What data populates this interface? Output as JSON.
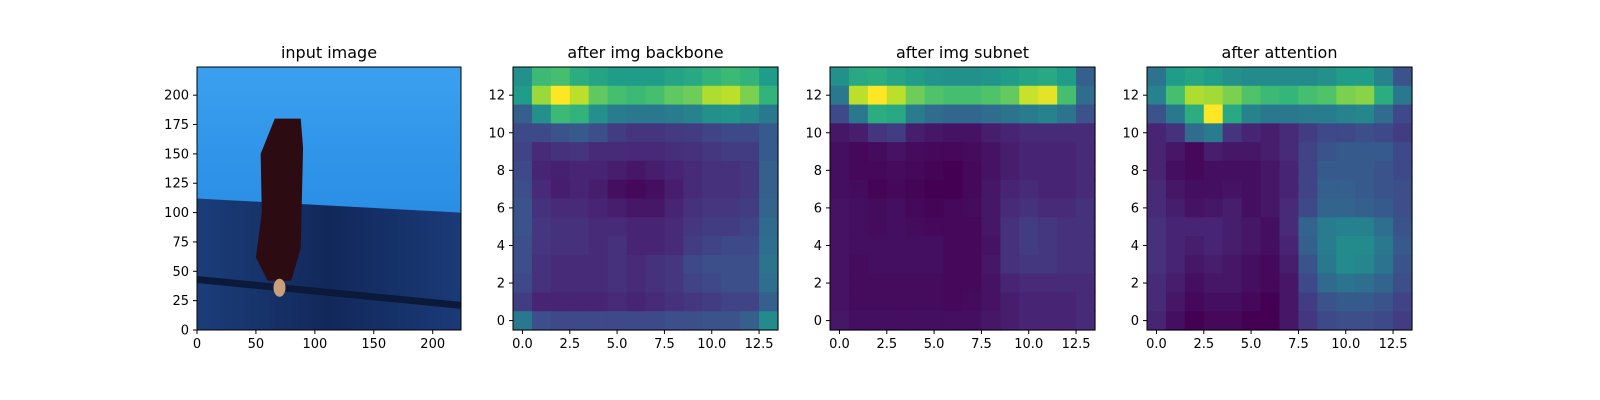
{
  "chart_data": [
    {
      "type": "image",
      "title": "input image",
      "xticks": [
        "0",
        "50",
        "100",
        "150",
        "200"
      ],
      "yticks": [
        "0",
        "25",
        "50",
        "75",
        "100",
        "125",
        "150",
        "175",
        "200"
      ],
      "xlim": [
        0,
        224
      ],
      "ylim": [
        224,
        0
      ],
      "image_description": "colors only",
      "colors": {
        "wall": "#12285a",
        "floor": "#2a8ee6",
        "dress": "#2c0c12"
      }
    },
    {
      "type": "heatmap",
      "title": "after img backbone",
      "colormap": "viridis",
      "xticks": [
        "0.0",
        "2.5",
        "5.0",
        "7.5",
        "10.0",
        "12.5"
      ],
      "yticks": [
        "0",
        "2",
        "4",
        "6",
        "8",
        "10",
        "12"
      ],
      "xlim": [
        -0.5,
        13.5
      ],
      "ylim": [
        13.5,
        -0.5
      ],
      "values": [
        [
          0.5,
          0.68,
          0.7,
          0.62,
          0.58,
          0.55,
          0.55,
          0.55,
          0.58,
          0.6,
          0.65,
          0.68,
          0.65,
          0.55
        ],
        [
          0.55,
          0.85,
          1.0,
          0.9,
          0.75,
          0.7,
          0.68,
          0.7,
          0.75,
          0.78,
          0.88,
          0.9,
          0.8,
          0.65
        ],
        [
          0.3,
          0.5,
          0.68,
          0.65,
          0.5,
          0.42,
          0.4,
          0.4,
          0.42,
          0.45,
          0.5,
          0.52,
          0.48,
          0.4
        ],
        [
          0.22,
          0.22,
          0.26,
          0.28,
          0.24,
          0.18,
          0.15,
          0.15,
          0.17,
          0.18,
          0.2,
          0.22,
          0.22,
          0.28
        ],
        [
          0.2,
          0.12,
          0.14,
          0.15,
          0.12,
          0.12,
          0.11,
          0.11,
          0.13,
          0.14,
          0.16,
          0.18,
          0.18,
          0.28
        ],
        [
          0.22,
          0.1,
          0.09,
          0.1,
          0.1,
          0.08,
          0.06,
          0.08,
          0.1,
          0.12,
          0.14,
          0.14,
          0.16,
          0.3
        ],
        [
          0.24,
          0.12,
          0.08,
          0.1,
          0.08,
          0.04,
          0.02,
          0.04,
          0.08,
          0.12,
          0.14,
          0.14,
          0.16,
          0.3
        ],
        [
          0.26,
          0.14,
          0.12,
          0.12,
          0.1,
          0.08,
          0.06,
          0.06,
          0.1,
          0.14,
          0.16,
          0.16,
          0.18,
          0.32
        ],
        [
          0.26,
          0.16,
          0.14,
          0.14,
          0.12,
          0.12,
          0.1,
          0.1,
          0.12,
          0.16,
          0.18,
          0.18,
          0.2,
          0.34
        ],
        [
          0.24,
          0.16,
          0.14,
          0.14,
          0.12,
          0.14,
          0.1,
          0.1,
          0.12,
          0.18,
          0.2,
          0.22,
          0.22,
          0.36
        ],
        [
          0.24,
          0.14,
          0.12,
          0.12,
          0.12,
          0.14,
          0.12,
          0.14,
          0.16,
          0.22,
          0.24,
          0.24,
          0.24,
          0.38
        ],
        [
          0.22,
          0.14,
          0.12,
          0.12,
          0.12,
          0.14,
          0.12,
          0.14,
          0.16,
          0.2,
          0.22,
          0.24,
          0.24,
          0.36
        ],
        [
          0.18,
          0.1,
          0.1,
          0.1,
          0.1,
          0.12,
          0.1,
          0.12,
          0.14,
          0.16,
          0.18,
          0.2,
          0.2,
          0.3
        ],
        [
          0.4,
          0.24,
          0.22,
          0.22,
          0.22,
          0.22,
          0.22,
          0.22,
          0.24,
          0.24,
          0.26,
          0.26,
          0.3,
          0.48
        ]
      ]
    },
    {
      "type": "heatmap",
      "title": "after img subnet",
      "colormap": "viridis",
      "xticks": [
        "0.0",
        "2.5",
        "5.0",
        "7.5",
        "10.0",
        "12.5"
      ],
      "yticks": [
        "0",
        "2",
        "4",
        "6",
        "8",
        "10",
        "12"
      ],
      "xlim": [
        -0.5,
        13.5
      ],
      "ylim": [
        13.5,
        -0.5
      ],
      "values": [
        [
          0.5,
          0.6,
          0.62,
          0.58,
          0.55,
          0.52,
          0.5,
          0.5,
          0.52,
          0.55,
          0.58,
          0.6,
          0.55,
          0.3
        ],
        [
          0.4,
          0.9,
          1.0,
          0.9,
          0.78,
          0.72,
          0.7,
          0.7,
          0.72,
          0.76,
          0.92,
          0.96,
          0.7,
          0.35
        ],
        [
          0.22,
          0.4,
          0.62,
          0.6,
          0.42,
          0.35,
          0.33,
          0.33,
          0.35,
          0.38,
          0.42,
          0.45,
          0.38,
          0.25
        ],
        [
          0.06,
          0.08,
          0.15,
          0.18,
          0.08,
          0.06,
          0.05,
          0.05,
          0.08,
          0.1,
          0.12,
          0.12,
          0.12,
          0.12
        ],
        [
          0.04,
          0.02,
          0.03,
          0.05,
          0.03,
          0.02,
          0.02,
          0.03,
          0.05,
          0.08,
          0.1,
          0.1,
          0.1,
          0.12
        ],
        [
          0.04,
          0.02,
          0.02,
          0.03,
          0.02,
          0.01,
          0.0,
          0.02,
          0.05,
          0.08,
          0.1,
          0.1,
          0.1,
          0.12
        ],
        [
          0.04,
          0.03,
          0.01,
          0.02,
          0.01,
          0.0,
          0.0,
          0.02,
          0.06,
          0.1,
          0.12,
          0.1,
          0.1,
          0.12
        ],
        [
          0.05,
          0.04,
          0.03,
          0.04,
          0.02,
          0.01,
          0.02,
          0.03,
          0.06,
          0.12,
          0.14,
          0.12,
          0.12,
          0.14
        ],
        [
          0.05,
          0.04,
          0.03,
          0.04,
          0.03,
          0.02,
          0.02,
          0.02,
          0.06,
          0.14,
          0.18,
          0.16,
          0.14,
          0.14
        ],
        [
          0.05,
          0.04,
          0.04,
          0.04,
          0.04,
          0.04,
          0.02,
          0.02,
          0.05,
          0.14,
          0.18,
          0.16,
          0.14,
          0.14
        ],
        [
          0.05,
          0.03,
          0.04,
          0.04,
          0.04,
          0.04,
          0.02,
          0.02,
          0.06,
          0.14,
          0.16,
          0.16,
          0.14,
          0.14
        ],
        [
          0.05,
          0.03,
          0.03,
          0.03,
          0.03,
          0.03,
          0.02,
          0.02,
          0.05,
          0.1,
          0.12,
          0.12,
          0.12,
          0.12
        ],
        [
          0.05,
          0.03,
          0.03,
          0.03,
          0.03,
          0.03,
          0.02,
          0.03,
          0.05,
          0.08,
          0.1,
          0.1,
          0.1,
          0.12
        ],
        [
          0.06,
          0.04,
          0.04,
          0.04,
          0.04,
          0.04,
          0.04,
          0.04,
          0.06,
          0.08,
          0.1,
          0.1,
          0.1,
          0.12
        ]
      ]
    },
    {
      "type": "heatmap",
      "title": "after attention",
      "colormap": "viridis",
      "xticks": [
        "0.0",
        "2.5",
        "5.0",
        "7.5",
        "10.0",
        "12.5"
      ],
      "yticks": [
        "0",
        "2",
        "4",
        "6",
        "8",
        "10",
        "12"
      ],
      "xlim": [
        -0.5,
        13.5
      ],
      "ylim": [
        13.5,
        -0.5
      ],
      "values": [
        [
          0.38,
          0.55,
          0.58,
          0.55,
          0.5,
          0.48,
          0.48,
          0.48,
          0.48,
          0.5,
          0.55,
          0.55,
          0.45,
          0.25
        ],
        [
          0.45,
          0.7,
          0.88,
          0.86,
          0.8,
          0.72,
          0.68,
          0.66,
          0.7,
          0.72,
          0.8,
          0.82,
          0.62,
          0.4
        ],
        [
          0.25,
          0.4,
          0.62,
          1.0,
          0.6,
          0.45,
          0.4,
          0.4,
          0.42,
          0.42,
          0.45,
          0.46,
          0.35,
          0.22
        ],
        [
          0.1,
          0.14,
          0.35,
          0.42,
          0.15,
          0.1,
          0.08,
          0.12,
          0.18,
          0.22,
          0.22,
          0.24,
          0.22,
          0.18
        ],
        [
          0.1,
          0.06,
          0.02,
          0.08,
          0.06,
          0.06,
          0.08,
          0.12,
          0.2,
          0.26,
          0.28,
          0.28,
          0.28,
          0.22
        ],
        [
          0.1,
          0.04,
          0.02,
          0.04,
          0.04,
          0.04,
          0.06,
          0.1,
          0.2,
          0.28,
          0.28,
          0.28,
          0.26,
          0.22
        ],
        [
          0.12,
          0.06,
          0.04,
          0.04,
          0.05,
          0.04,
          0.06,
          0.1,
          0.2,
          0.3,
          0.3,
          0.28,
          0.26,
          0.24
        ],
        [
          0.12,
          0.08,
          0.05,
          0.06,
          0.08,
          0.04,
          0.06,
          0.12,
          0.22,
          0.32,
          0.32,
          0.3,
          0.28,
          0.24
        ],
        [
          0.14,
          0.1,
          0.1,
          0.1,
          0.08,
          0.06,
          0.04,
          0.12,
          0.32,
          0.42,
          0.44,
          0.44,
          0.36,
          0.26
        ],
        [
          0.14,
          0.1,
          0.08,
          0.1,
          0.08,
          0.06,
          0.04,
          0.1,
          0.3,
          0.42,
          0.48,
          0.48,
          0.4,
          0.28
        ],
        [
          0.14,
          0.1,
          0.06,
          0.08,
          0.06,
          0.04,
          0.02,
          0.08,
          0.26,
          0.4,
          0.48,
          0.46,
          0.38,
          0.26
        ],
        [
          0.12,
          0.08,
          0.04,
          0.06,
          0.06,
          0.04,
          0.02,
          0.06,
          0.22,
          0.34,
          0.38,
          0.36,
          0.32,
          0.24
        ],
        [
          0.12,
          0.06,
          0.02,
          0.04,
          0.04,
          0.02,
          0.0,
          0.06,
          0.18,
          0.26,
          0.28,
          0.28,
          0.26,
          0.2
        ],
        [
          0.1,
          0.04,
          0.0,
          0.02,
          0.02,
          0.0,
          0.0,
          0.06,
          0.16,
          0.22,
          0.24,
          0.24,
          0.22,
          0.18
        ]
      ]
    }
  ]
}
